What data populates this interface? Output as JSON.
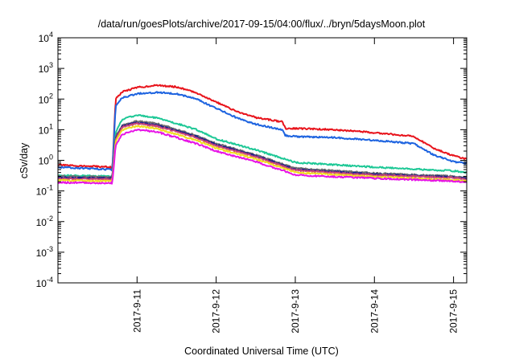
{
  "chart_data": {
    "type": "line",
    "title": "/data/run/goesPlots/archive/2017-09-15/04:00/flux/../bryn/5daysMoon.plot",
    "xlabel": "Coordinated Universal Time (UTC)",
    "ylabel": "cSv/day",
    "y_scale": "log",
    "ylim": [
      0.0001,
      10000
    ],
    "xlim": [
      "2017-09-10",
      "2017-09-15T04:00"
    ],
    "grid": false,
    "x_ticks": [
      "2017-9-11",
      "2017-9-12",
      "2017-9-13",
      "2017-9-14",
      "2017-9-15"
    ],
    "y_ticks": [
      {
        "base": "10",
        "exp": "-4"
      },
      {
        "base": "10",
        "exp": "-3"
      },
      {
        "base": "10",
        "exp": "-2"
      },
      {
        "base": "10",
        "exp": "-1"
      },
      {
        "base": "10",
        "exp": "0"
      },
      {
        "base": "10",
        "exp": "1"
      },
      {
        "base": "10",
        "exp": "2"
      },
      {
        "base": "10",
        "exp": "3"
      },
      {
        "base": "10",
        "exp": "4"
      }
    ],
    "series": [
      {
        "color": "#e8141c",
        "x": [
          "2017-09-10",
          "2017-09-10T16:00",
          "2017-09-10T16:30",
          "2017-09-10T17:30",
          "2017-09-10T19:30",
          "2017-09-11",
          "2017-09-11T06:00",
          "2017-09-11T12:00",
          "2017-09-11T18:00",
          "2017-09-12",
          "2017-09-12T06:00",
          "2017-09-12T12:00",
          "2017-09-12T20:00",
          "2017-09-12T21:00",
          "2017-09-13",
          "2017-09-13T12:00",
          "2017-09-14",
          "2017-09-14T12:00",
          "2017-09-14T18:00",
          "2017-09-15",
          "2017-09-15T04:00"
        ],
        "values": [
          0.7,
          0.6,
          0.5,
          100,
          170,
          240,
          280,
          250,
          160,
          80,
          40,
          25,
          18,
          11,
          11,
          10,
          8,
          6,
          2.5,
          1.4,
          1.1
        ]
      },
      {
        "color": "#1e64e0",
        "x": [
          "2017-09-10",
          "2017-09-10T16:00",
          "2017-09-10T16:30",
          "2017-09-10T17:30",
          "2017-09-10T19:30",
          "2017-09-11",
          "2017-09-11T06:00",
          "2017-09-11T12:00",
          "2017-09-11T18:00",
          "2017-09-12",
          "2017-09-12T06:00",
          "2017-09-12T12:00",
          "2017-09-12T20:00",
          "2017-09-12T21:00",
          "2017-09-13",
          "2017-09-13T12:00",
          "2017-09-14",
          "2017-09-14T12:00",
          "2017-09-14T18:00",
          "2017-09-15",
          "2017-09-15T04:00"
        ],
        "values": [
          0.6,
          0.5,
          0.45,
          60,
          110,
          150,
          165,
          150,
          100,
          50,
          25,
          15,
          10,
          6.5,
          6,
          5.5,
          4.5,
          3.5,
          1.5,
          0.9,
          0.8
        ]
      },
      {
        "color": "#1ec896",
        "x": [
          "2017-09-10",
          "2017-09-10T16:00",
          "2017-09-10T16:30",
          "2017-09-10T17:30",
          "2017-09-10T19:30",
          "2017-09-11",
          "2017-09-11T06:00",
          "2017-09-11T12:00",
          "2017-09-11T18:00",
          "2017-09-12",
          "2017-09-12T12:00",
          "2017-09-12T22:00",
          "2017-09-13",
          "2017-09-14",
          "2017-09-15",
          "2017-09-15T04:00"
        ],
        "values": [
          0.32,
          0.3,
          0.3,
          8,
          22,
          30,
          24,
          16,
          10,
          5,
          2.2,
          1.0,
          0.85,
          0.6,
          0.45,
          0.4
        ]
      },
      {
        "color": "#6e6e6e",
        "x": [
          "2017-09-10",
          "2017-09-10T16:00",
          "2017-09-10T16:30",
          "2017-09-10T17:30",
          "2017-09-10T19:30",
          "2017-09-11",
          "2017-09-11T06:00",
          "2017-09-11T12:00",
          "2017-09-11T18:00",
          "2017-09-12",
          "2017-09-12T12:00",
          "2017-09-12T22:00",
          "2017-09-13",
          "2017-09-14",
          "2017-09-15",
          "2017-09-15T04:00"
        ],
        "values": [
          0.3,
          0.28,
          0.28,
          6,
          14,
          19,
          16,
          10,
          6.5,
          3.5,
          1.5,
          0.65,
          0.55,
          0.38,
          0.3,
          0.27
        ]
      },
      {
        "color": "#1c1c8c",
        "x": [
          "2017-09-10",
          "2017-09-10T16:00",
          "2017-09-10T16:30",
          "2017-09-10T17:30",
          "2017-09-10T19:30",
          "2017-09-11",
          "2017-09-11T06:00",
          "2017-09-11T12:00",
          "2017-09-11T18:00",
          "2017-09-12",
          "2017-09-12T12:00",
          "2017-09-12T22:00",
          "2017-09-13",
          "2017-09-14",
          "2017-09-15",
          "2017-09-15T04:00"
        ],
        "values": [
          0.27,
          0.26,
          0.26,
          5.5,
          13,
          17,
          14,
          9,
          6,
          3.2,
          1.4,
          0.6,
          0.5,
          0.35,
          0.28,
          0.25
        ]
      },
      {
        "color": "#c84678",
        "x": [
          "2017-09-10",
          "2017-09-10T16:00",
          "2017-09-10T16:30",
          "2017-09-10T17:30",
          "2017-09-10T19:30",
          "2017-09-11",
          "2017-09-11T06:00",
          "2017-09-11T12:00",
          "2017-09-11T18:00",
          "2017-09-12",
          "2017-09-12T12:00",
          "2017-09-12T22:00",
          "2017-09-13",
          "2017-09-14",
          "2017-09-15",
          "2017-09-15T04:00"
        ],
        "values": [
          0.25,
          0.24,
          0.24,
          5,
          12,
          16,
          13,
          8.5,
          5.5,
          3,
          1.3,
          0.56,
          0.47,
          0.33,
          0.27,
          0.24
        ]
      },
      {
        "color": "#f0dc1e",
        "x": [
          "2017-09-10",
          "2017-09-10T16:00",
          "2017-09-10T16:30",
          "2017-09-10T17:30",
          "2017-09-10T19:30",
          "2017-09-11",
          "2017-09-11T06:00",
          "2017-09-11T12:00",
          "2017-09-11T18:00",
          "2017-09-12",
          "2017-09-12T12:00",
          "2017-09-12T22:00",
          "2017-09-13",
          "2017-09-14",
          "2017-09-15",
          "2017-09-15T04:00"
        ],
        "values": [
          0.22,
          0.21,
          0.21,
          4,
          10,
          13,
          11,
          7,
          4.5,
          2.5,
          1.1,
          0.48,
          0.4,
          0.29,
          0.23,
          0.21
        ]
      },
      {
        "color": "#e614e6",
        "x": [
          "2017-09-10",
          "2017-09-10T16:00",
          "2017-09-10T16:30",
          "2017-09-10T17:30",
          "2017-09-10T19:30",
          "2017-09-11",
          "2017-09-11T06:00",
          "2017-09-11T12:00",
          "2017-09-11T18:00",
          "2017-09-12",
          "2017-09-12T12:00",
          "2017-09-12T22:00",
          "2017-09-13",
          "2017-09-14",
          "2017-09-15",
          "2017-09-15T04:00"
        ],
        "values": [
          0.19,
          0.18,
          0.18,
          3,
          7,
          10,
          8.5,
          5.5,
          3.5,
          2,
          0.9,
          0.4,
          0.33,
          0.26,
          0.21,
          0.19
        ]
      }
    ]
  }
}
